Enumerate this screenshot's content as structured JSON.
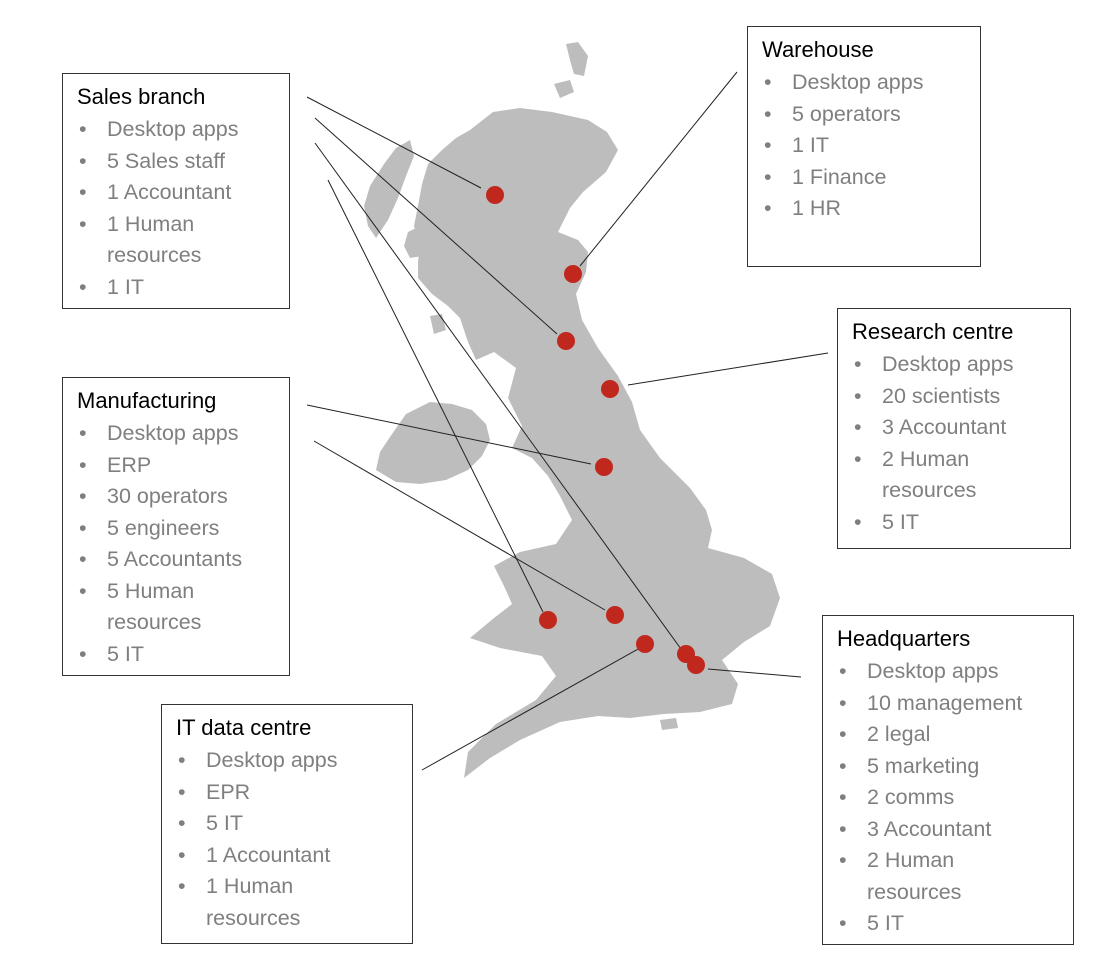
{
  "colors": {
    "land": "#bdbdbd",
    "marker": "#c0281e",
    "leader": "#222222",
    "item_text": "#7f7f7f"
  },
  "locations": [
    {
      "name": "Sales branch",
      "items": [
        "Desktop apps",
        "5 Sales staff",
        "1 Accountant",
        "1 Human resources",
        "1 IT"
      ]
    },
    {
      "name": "Warehouse",
      "items": [
        "Desktop apps",
        "5 operators",
        "1 IT",
        "1 Finance",
        "1 HR"
      ]
    },
    {
      "name": "Research centre",
      "items": [
        "Desktop apps",
        "20 scientists",
        "3 Accountant",
        "2 Human resources",
        "5 IT"
      ]
    },
    {
      "name": "Manufacturing",
      "items": [
        "Desktop apps",
        "ERP",
        "30 operators",
        "5 engineers",
        "5 Accountants",
        "5 Human resources",
        "5 IT"
      ]
    },
    {
      "name": "Headquarters",
      "items": [
        "Desktop apps",
        "10 management",
        "2 legal",
        "5 marketing",
        "2 comms",
        "3 Accountant",
        "2 Human resources",
        "5 IT"
      ]
    },
    {
      "name": "IT data centre",
      "items": [
        "Desktop apps",
        "EPR",
        "5 IT",
        "1 Accountant",
        "1 Human resources"
      ]
    }
  ]
}
